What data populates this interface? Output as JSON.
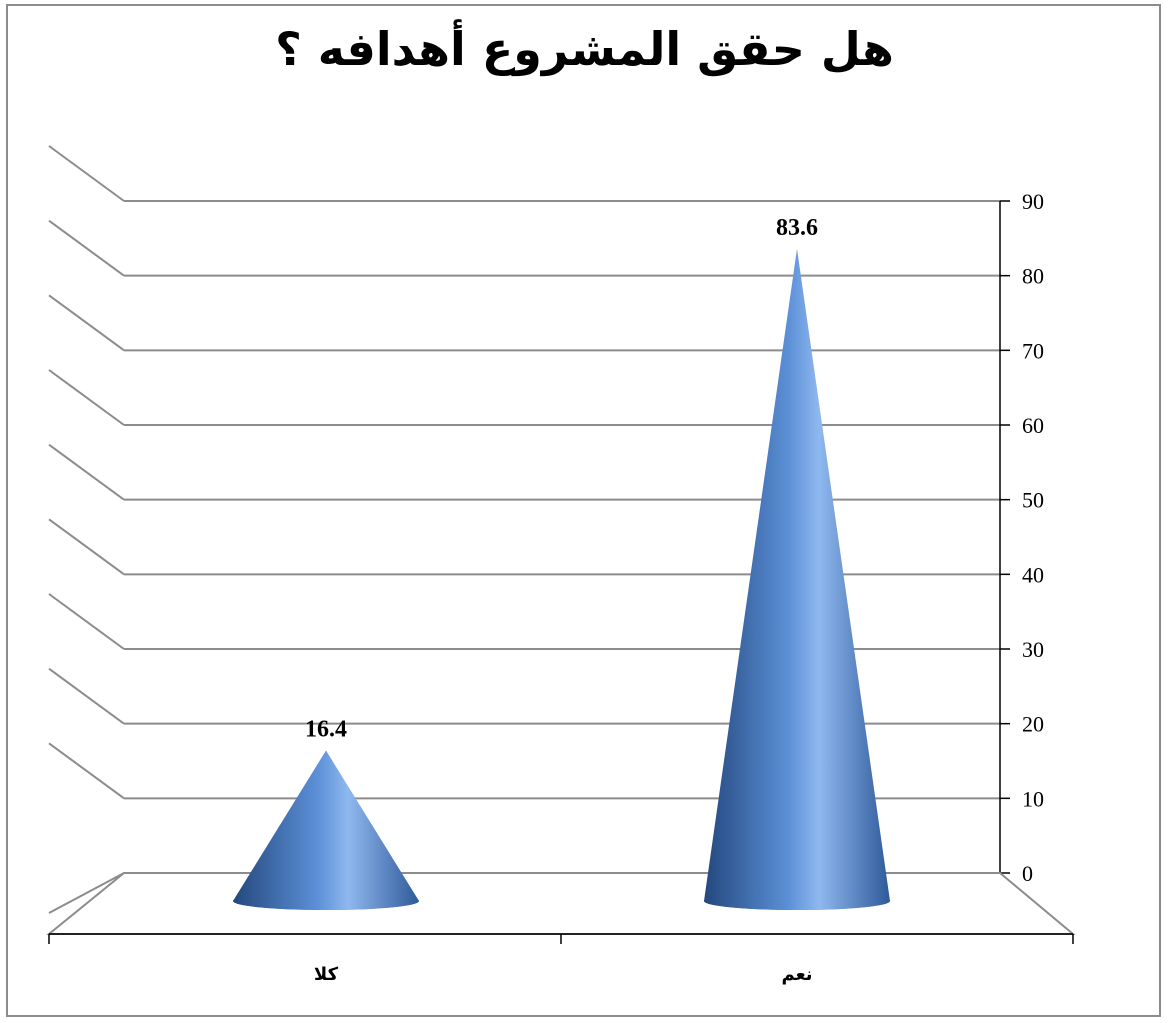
{
  "chart_data": {
    "type": "bar",
    "shape": "cone-3d",
    "title": "هل حقق المشروع أهدافه ؟",
    "categories": [
      "كلا",
      "نعم"
    ],
    "values": [
      16.4,
      83.6
    ],
    "data_labels": [
      "16.4",
      "83.6"
    ],
    "ylim": [
      0,
      90
    ],
    "yticks": [
      "0",
      "10",
      "20",
      "30",
      "40",
      "50",
      "60",
      "70",
      "80",
      "90"
    ],
    "y_axis_side": "right",
    "grid": true,
    "colors": {
      "cone": "#4a7ec4",
      "cone_light": "#8fb8ef",
      "cone_dark": "#24487e",
      "grid": "#8c8c8c"
    }
  }
}
